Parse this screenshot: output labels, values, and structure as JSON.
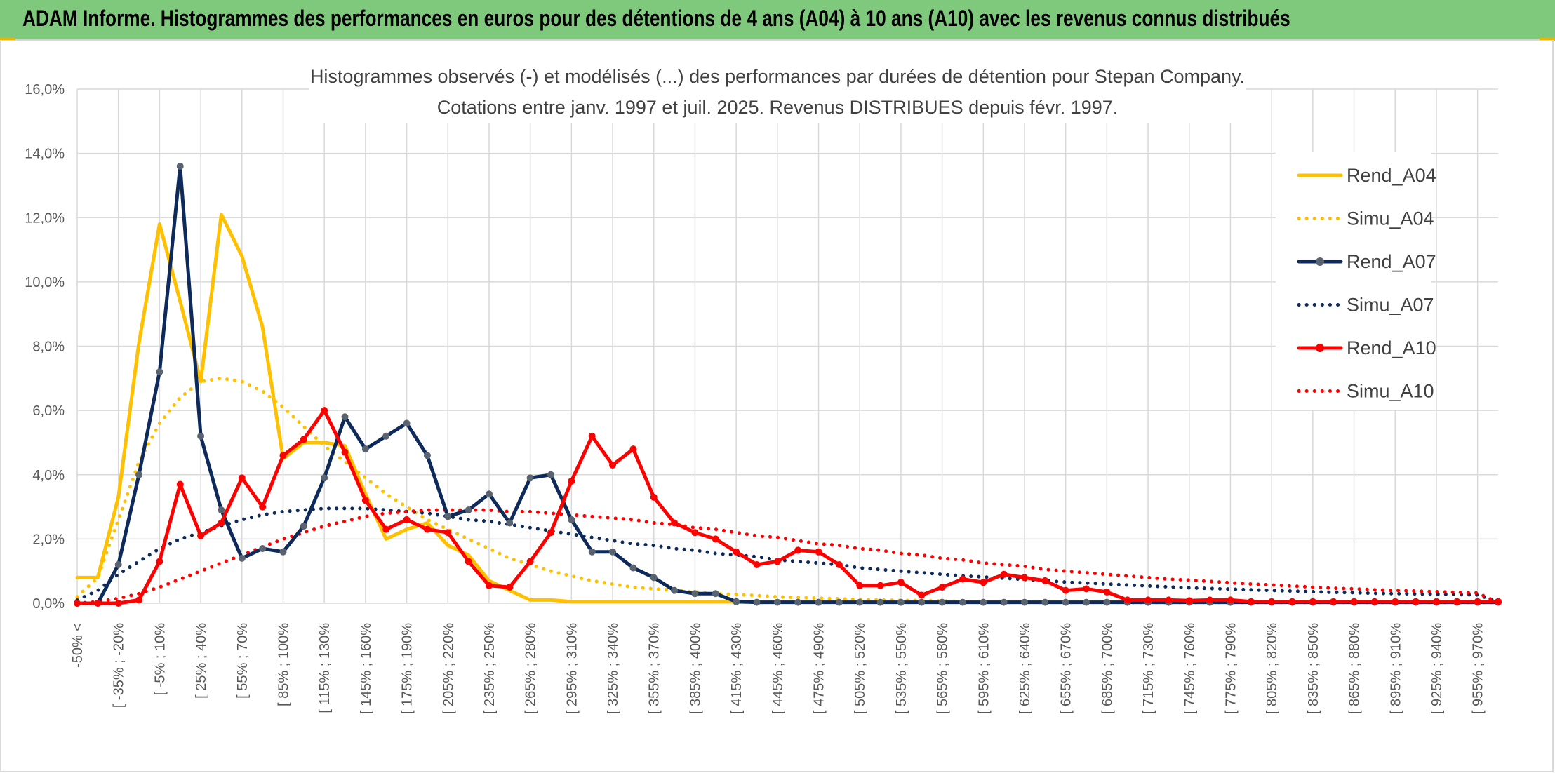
{
  "banner": {
    "title": "ADAM Informe. Histogrammes des performances en euros pour des détentions de 4 ans (A04) à 10 ans (A10) avec les revenus connus distribués"
  },
  "colors": {
    "banner": "#7ec97b",
    "A04": "#ffc000",
    "A07": "#0e2a5a",
    "A07_markers": "#5a6470",
    "A10": "#ff0000",
    "grid": "#d9d9d9"
  },
  "chart_data": {
    "type": "line",
    "title": "Histogrammes observés (-) et modélisés (...) des performances par durées de détention pour Stepan Company.",
    "subtitle": "Cotations entre janv. 1997 et juil. 2025. Revenus DISTRIBUES depuis févr. 1997.",
    "y_ticks": [
      "0,0%",
      "2,0%",
      "4,0%",
      "6,0%",
      "8,0%",
      "10,0%",
      "12,0%",
      "14,0%",
      "16,0%"
    ],
    "ylim": [
      0,
      16
    ],
    "grid": true,
    "legend_position": "right",
    "x_labels": [
      "-50% <",
      "[ -35% ; -20%",
      "[ -5% ; 10%",
      "[ 25% ; 40%",
      "[ 55% ; 70%",
      "[ 85% ; 100%",
      "[ 115% ; 130%",
      "[ 145% ; 160%",
      "[ 175% ; 190%",
      "[ 205% ; 220%",
      "[ 235% ; 250%",
      "[ 265% ; 280%",
      "[ 295% ; 310%",
      "[ 325% ; 340%",
      "[ 355% ; 370%",
      "[ 385% ; 400%",
      "[ 415% ; 430%",
      "[ 445% ; 460%",
      "[ 475% ; 490%",
      "[ 505% ; 520%",
      "[ 535% ; 550%",
      "[ 565% ; 580%",
      "[ 595% ; 610%",
      "[ 625% ; 640%",
      "[ 655% ; 670%",
      "[ 685% ; 700%",
      "[ 715% ; 730%",
      "[ 745% ; 760%",
      "[ 775% ; 790%",
      "[ 805% ; 820%",
      "[ 835% ; 850%",
      "[ 865% ; 880%",
      "[ 895% ; 910%",
      "[ 925% ; 940%",
      "[ 955% ; 970%"
    ],
    "series": [
      {
        "name": "Rend_A04",
        "style": "solid",
        "color": "#ffc000",
        "markers": false,
        "values": [
          0.8,
          0.8,
          3.3,
          8.1,
          11.8,
          9.4,
          6.9,
          12.1,
          10.8,
          8.6,
          4.5,
          5.0,
          5.0,
          4.9,
          3.4,
          2.0,
          2.3,
          2.5,
          1.8,
          1.5,
          0.7,
          0.4,
          0.1,
          0.1,
          0.05,
          0.05,
          0.05,
          0.05,
          0.05,
          0.05,
          0.05,
          0.05,
          0.05,
          0.05,
          0.05,
          0.05,
          0.05,
          0.05,
          0.05,
          0.05,
          0.05,
          0.05,
          0.05,
          0.05,
          0.05,
          0.05,
          0.05,
          0.05,
          0.05,
          0.05,
          0.05,
          0.05,
          0.05,
          0.05,
          0.05,
          0.05,
          0.05,
          0.05,
          0.05,
          0.05,
          0.05,
          0.05,
          0.05,
          0.05,
          0.05,
          0.05,
          0.05,
          0.05,
          0.05,
          0.05
        ]
      },
      {
        "name": "Simu_A04",
        "style": "dotted",
        "color": "#ffc000",
        "markers": false,
        "values": [
          0.2,
          0.8,
          2.6,
          4.4,
          5.6,
          6.4,
          6.9,
          7.0,
          6.9,
          6.6,
          6.1,
          5.5,
          4.9,
          4.4,
          3.9,
          3.4,
          3.0,
          2.6,
          2.3,
          2.0,
          1.7,
          1.4,
          1.2,
          1.0,
          0.85,
          0.7,
          0.6,
          0.5,
          0.45,
          0.4,
          0.35,
          0.3,
          0.27,
          0.24,
          0.2,
          0.18,
          0.16,
          0.14,
          0.12,
          0.1,
          0.09,
          0.08,
          0.07,
          0.06,
          0.05,
          0.05,
          0.04,
          0.04,
          0.03,
          0.03,
          0.03,
          0.02,
          0.02,
          0.02,
          0.02,
          0.02,
          0.02,
          0.02,
          0.02,
          0.02,
          0.02,
          0.02,
          0.02,
          0.02,
          0.02,
          0.02,
          0.02,
          0.02,
          0.02,
          0.02
        ]
      },
      {
        "name": "Rend_A07",
        "style": "solid",
        "color": "#0e2a5a",
        "markers": true,
        "values": [
          0,
          0,
          1.2,
          4.0,
          7.2,
          13.6,
          5.2,
          2.9,
          1.4,
          1.7,
          1.6,
          2.4,
          3.9,
          5.8,
          4.8,
          5.2,
          5.6,
          4.6,
          2.7,
          2.9,
          3.4,
          2.5,
          3.9,
          4.0,
          2.6,
          1.6,
          1.6,
          1.1,
          0.8,
          0.4,
          0.3,
          0.3,
          0.05,
          0.03,
          0.03,
          0.03,
          0.03,
          0.03,
          0.03,
          0.03,
          0.03,
          0.03,
          0.03,
          0.03,
          0.03,
          0.03,
          0.03,
          0.03,
          0.03,
          0.03,
          0.03,
          0.03,
          0.03,
          0.03,
          0.03,
          0.03,
          0.03,
          0.03,
          0.03,
          0.03,
          0.03,
          0.03,
          0.03,
          0.03,
          0.03,
          0.03,
          0.03,
          0.03,
          0.03,
          0.03
        ]
      },
      {
        "name": "Simu_A07",
        "style": "dotted",
        "color": "#0e2a5a",
        "markers": false,
        "values": [
          0.1,
          0.4,
          0.9,
          1.3,
          1.7,
          2.0,
          2.2,
          2.4,
          2.6,
          2.75,
          2.85,
          2.9,
          2.95,
          2.95,
          2.95,
          2.9,
          2.85,
          2.8,
          2.7,
          2.6,
          2.55,
          2.45,
          2.35,
          2.25,
          2.15,
          2.05,
          1.95,
          1.85,
          1.8,
          1.7,
          1.65,
          1.55,
          1.5,
          1.45,
          1.35,
          1.3,
          1.25,
          1.2,
          1.1,
          1.05,
          1.0,
          0.95,
          0.9,
          0.85,
          0.82,
          0.78,
          0.74,
          0.7,
          0.66,
          0.63,
          0.6,
          0.57,
          0.54,
          0.51,
          0.48,
          0.46,
          0.44,
          0.42,
          0.4,
          0.38,
          0.36,
          0.34,
          0.33,
          0.31,
          0.3,
          0.29,
          0.28,
          0.27,
          0.26,
          0.05
        ]
      },
      {
        "name": "Rend_A10",
        "style": "solid",
        "color": "#ff0000",
        "markers": true,
        "values": [
          0,
          0,
          0,
          0.1,
          1.3,
          3.7,
          2.1,
          2.5,
          3.9,
          3.0,
          4.6,
          5.1,
          6.0,
          4.7,
          3.2,
          2.3,
          2.6,
          2.3,
          2.2,
          1.3,
          0.55,
          0.5,
          1.3,
          2.2,
          3.8,
          5.2,
          4.3,
          4.8,
          3.3,
          2.5,
          2.2,
          2.0,
          1.6,
          1.2,
          1.3,
          1.65,
          1.6,
          1.2,
          0.55,
          0.55,
          0.65,
          0.25,
          0.5,
          0.75,
          0.65,
          0.9,
          0.8,
          0.7,
          0.4,
          0.45,
          0.35,
          0.1,
          0.1,
          0.1,
          0.08,
          0.1,
          0.1,
          0.05,
          0.05,
          0.05,
          0.05,
          0.05,
          0.05,
          0.05,
          0.05,
          0.05,
          0.05,
          0.05,
          0.05,
          0.05
        ]
      },
      {
        "name": "Simu_A10",
        "style": "dotted",
        "color": "#ff0000",
        "markers": false,
        "values": [
          0,
          0.05,
          0.15,
          0.3,
          0.5,
          0.75,
          1.0,
          1.25,
          1.5,
          1.75,
          2.0,
          2.2,
          2.4,
          2.55,
          2.7,
          2.8,
          2.85,
          2.9,
          2.9,
          2.9,
          2.9,
          2.85,
          2.85,
          2.8,
          2.75,
          2.7,
          2.65,
          2.6,
          2.5,
          2.45,
          2.35,
          2.3,
          2.2,
          2.1,
          2.05,
          1.95,
          1.85,
          1.8,
          1.7,
          1.65,
          1.55,
          1.5,
          1.4,
          1.35,
          1.25,
          1.2,
          1.15,
          1.05,
          1.0,
          0.95,
          0.9,
          0.85,
          0.8,
          0.75,
          0.72,
          0.68,
          0.64,
          0.6,
          0.57,
          0.54,
          0.5,
          0.47,
          0.45,
          0.42,
          0.4,
          0.38,
          0.36,
          0.34,
          0.32,
          0.02
        ]
      }
    ]
  }
}
